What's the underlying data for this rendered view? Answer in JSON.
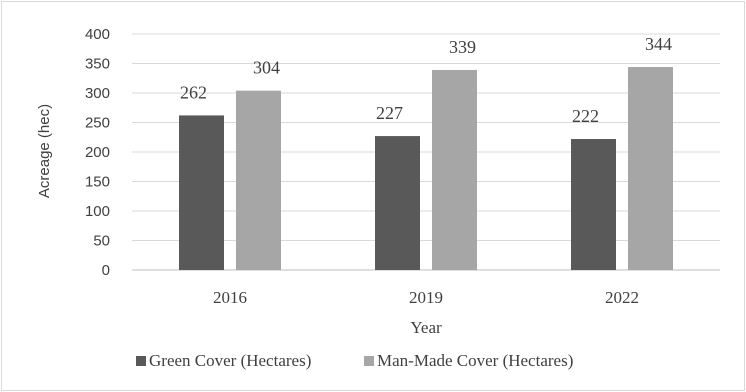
{
  "chart_data": {
    "type": "bar",
    "categories": [
      "2016",
      "2019",
      "2022"
    ],
    "series": [
      {
        "name": "Green Cover (Hectares)",
        "values": [
          262,
          227,
          222
        ],
        "color": "#595959"
      },
      {
        "name": "Man-Made Cover (Hectares)",
        "values": [
          304,
          339,
          344
        ],
        "color": "#a6a6a6"
      }
    ],
    "title": "",
    "xlabel": "Year",
    "ylabel": "Acreage (hec)",
    "ylim": [
      0,
      400
    ],
    "yticks": [
      "0",
      "50",
      "100",
      "150",
      "200",
      "250",
      "300",
      "350",
      "400"
    ],
    "grid": true,
    "legend_position": "bottom",
    "data_labels": true
  }
}
